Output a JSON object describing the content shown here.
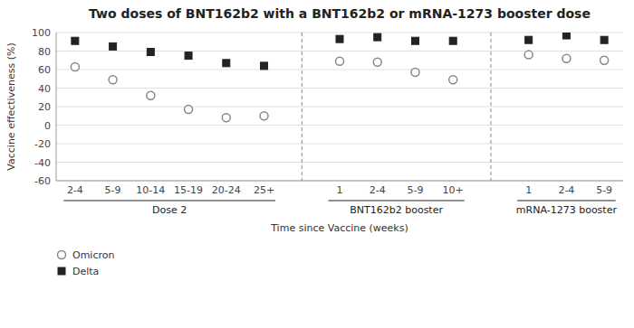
{
  "chart_data": {
    "type": "errorbar",
    "title": "Two doses of BNT162b2 with a BNT162b2 or mRNA-1273 booster dose",
    "y_label": "Vaccine effectiveness (%)",
    "x_label": "Time since Vaccine (weeks)",
    "groups": [
      {
        "label": "Dose 2",
        "categories": [
          "2-4",
          "5-9",
          "10-14",
          "15-19",
          "20-24",
          "25+"
        ]
      },
      {
        "label": "BNT162b2 booster",
        "categories": [
          "1",
          "2-4",
          "5-9",
          "10+"
        ]
      },
      {
        "label": "mRNA-1273 booster",
        "categories": [
          "1",
          "2-4",
          "5-9"
        ]
      }
    ],
    "series": [
      {
        "name": "Omicron",
        "color": "#888888",
        "marker": "circle",
        "values": [
          63,
          49,
          32,
          17,
          8,
          10,
          69,
          68,
          57,
          49,
          76,
          72,
          70
        ],
        "errors": [
          3,
          3,
          3,
          3,
          3,
          3,
          3,
          3,
          3,
          3,
          3,
          3,
          4
        ]
      },
      {
        "name": "Delta",
        "color": "#222222",
        "marker": "square",
        "values": [
          91,
          85,
          79,
          75,
          67,
          64,
          93,
          95,
          91,
          91,
          92,
          97,
          92
        ],
        "errors": [
          2,
          2,
          2,
          2,
          2,
          2,
          2,
          2,
          2,
          2,
          2,
          2,
          3
        ]
      }
    ],
    "ylim": [
      -60,
      100
    ],
    "yticks": [
      -60,
      -40,
      -20,
      0,
      20,
      40,
      60,
      80,
      100
    ],
    "grid": true,
    "legend": "bottom-left"
  }
}
